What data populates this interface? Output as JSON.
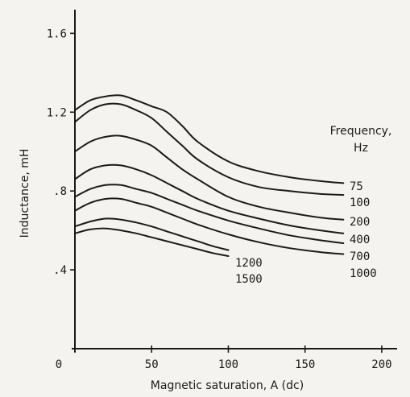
{
  "chart_data": {
    "type": "line",
    "xlabel": "Magnetic saturation, A (dc)",
    "ylabel": "Inductance, mH",
    "xlim": [
      0,
      210
    ],
    "ylim": [
      0,
      1.72
    ],
    "x_ticks": [
      {
        "value": 0,
        "label": "0"
      },
      {
        "value": 50,
        "label": "50"
      },
      {
        "value": 100,
        "label": "100"
      },
      {
        "value": 150,
        "label": "150"
      },
      {
        "value": 200,
        "label": "200"
      }
    ],
    "y_ticks": [
      {
        "value": 0.4,
        "label": ".4"
      },
      {
        "value": 0.8,
        "label": ".8"
      },
      {
        "value": 1.2,
        "label": "1.2"
      },
      {
        "value": 1.6,
        "label": "1.6"
      }
    ],
    "legend_title_line1": "Frequency,",
    "legend_title_line2": "Hz",
    "grid": false,
    "series": [
      {
        "name": "75",
        "x": [
          0,
          10,
          20,
          30,
          40,
          50,
          60,
          70,
          80,
          100,
          120,
          140,
          160,
          175
        ],
        "values": [
          1.21,
          1.26,
          1.28,
          1.285,
          1.26,
          1.23,
          1.2,
          1.13,
          1.05,
          0.95,
          0.9,
          0.87,
          0.85,
          0.84
        ]
      },
      {
        "name": "100",
        "x": [
          0,
          10,
          20,
          30,
          40,
          50,
          60,
          70,
          80,
          100,
          120,
          140,
          160,
          175
        ],
        "values": [
          1.15,
          1.21,
          1.24,
          1.24,
          1.21,
          1.17,
          1.1,
          1.03,
          0.96,
          0.87,
          0.82,
          0.8,
          0.785,
          0.78
        ]
      },
      {
        "name": "200",
        "x": [
          0,
          10,
          20,
          30,
          40,
          50,
          60,
          70,
          80,
          100,
          120,
          140,
          160,
          175
        ],
        "values": [
          1.0,
          1.05,
          1.075,
          1.08,
          1.06,
          1.03,
          0.97,
          0.91,
          0.86,
          0.77,
          0.72,
          0.69,
          0.665,
          0.655
        ]
      },
      {
        "name": "400",
        "x": [
          0,
          10,
          20,
          30,
          40,
          50,
          60,
          70,
          80,
          100,
          120,
          140,
          160,
          175
        ],
        "values": [
          0.86,
          0.91,
          0.93,
          0.93,
          0.91,
          0.88,
          0.84,
          0.8,
          0.76,
          0.7,
          0.66,
          0.625,
          0.6,
          0.585
        ]
      },
      {
        "name": "700",
        "x": [
          0,
          10,
          20,
          30,
          40,
          50,
          60,
          70,
          80,
          100,
          120,
          140,
          160,
          175
        ],
        "values": [
          0.77,
          0.81,
          0.83,
          0.83,
          0.81,
          0.79,
          0.76,
          0.73,
          0.7,
          0.65,
          0.61,
          0.575,
          0.55,
          0.535
        ]
      },
      {
        "name": "1000",
        "x": [
          0,
          10,
          20,
          30,
          40,
          50,
          60,
          70,
          80,
          100,
          120,
          140,
          160,
          175
        ],
        "values": [
          0.7,
          0.74,
          0.76,
          0.76,
          0.74,
          0.72,
          0.69,
          0.66,
          0.63,
          0.58,
          0.54,
          0.51,
          0.49,
          0.48
        ]
      },
      {
        "name": "1200",
        "x": [
          0,
          10,
          20,
          30,
          40,
          50,
          60,
          70,
          80,
          90,
          100
        ],
        "values": [
          0.62,
          0.645,
          0.66,
          0.655,
          0.64,
          0.62,
          0.595,
          0.57,
          0.545,
          0.52,
          0.5
        ]
      },
      {
        "name": "1500",
        "x": [
          0,
          10,
          20,
          30,
          40,
          50,
          60,
          70,
          80,
          90,
          100
        ],
        "values": [
          0.585,
          0.605,
          0.61,
          0.6,
          0.585,
          0.565,
          0.545,
          0.525,
          0.505,
          0.485,
          0.47
        ]
      }
    ]
  }
}
